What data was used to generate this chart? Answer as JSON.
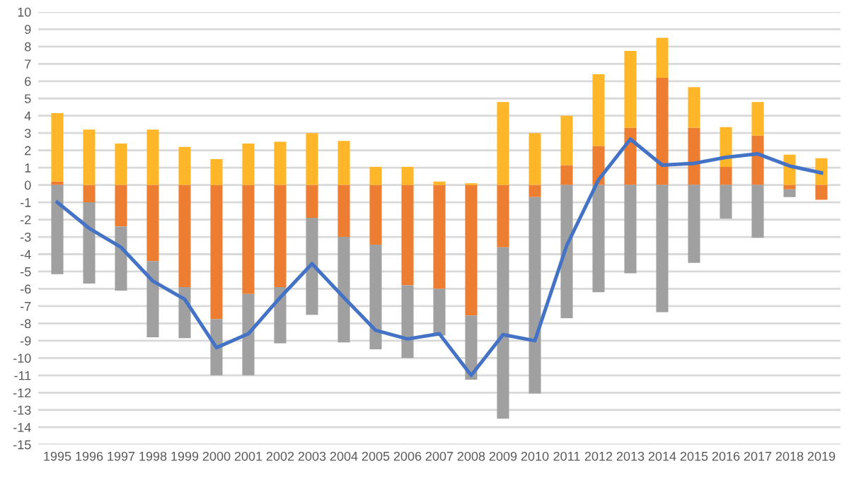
{
  "chart_data": {
    "type": "bar",
    "stacked": true,
    "categories": [
      "1995",
      "1996",
      "1997",
      "1998",
      "1999",
      "2000",
      "2001",
      "2002",
      "2003",
      "2004",
      "2005",
      "2006",
      "2007",
      "2008",
      "2009",
      "2010",
      "2011",
      "2012",
      "2013",
      "2014",
      "2015",
      "2016",
      "2017",
      "2018",
      "2019"
    ],
    "series": [
      {
        "color": "#ed7d31",
        "values": [
          0.2,
          -1.0,
          -2.4,
          -4.4,
          -5.9,
          -7.75,
          -6.3,
          -5.9,
          -1.9,
          -3.0,
          -3.45,
          -5.8,
          -6.0,
          -7.55,
          -3.6,
          -0.7,
          1.15,
          2.25,
          3.3,
          6.2,
          3.3,
          1.05,
          2.85,
          -0.25,
          -0.85
        ]
      },
      {
        "color": "#a0a0a0",
        "values": [
          -5.15,
          -4.7,
          -3.7,
          -4.4,
          -2.95,
          -3.25,
          -4.7,
          -3.25,
          -5.6,
          -6.1,
          -6.05,
          -4.2,
          -2.7,
          -3.7,
          -9.9,
          -11.35,
          -7.7,
          -6.2,
          -5.1,
          -7.35,
          -4.5,
          -1.95,
          -3.05,
          -0.45,
          0
        ]
      },
      {
        "color": "#ffb628",
        "values": [
          3.95,
          3.2,
          2.4,
          3.2,
          2.2,
          1.5,
          2.4,
          2.5,
          3.0,
          2.55,
          1.05,
          1.05,
          0.2,
          0.1,
          4.8,
          3.0,
          2.85,
          4.15,
          4.45,
          2.3,
          2.35,
          2.3,
          1.95,
          1.75,
          1.55
        ]
      },
      {
        "type": "line",
        "color": "#4472c4",
        "values": [
          -1.0,
          -2.5,
          -3.6,
          -5.55,
          -6.6,
          -9.4,
          -8.6,
          -6.5,
          -4.55,
          -6.5,
          -8.4,
          -8.9,
          -8.6,
          -11.0,
          -8.65,
          -9.0,
          -3.5,
          0.3,
          2.65,
          1.15,
          1.25,
          1.6,
          1.8,
          1.1,
          0.7
        ]
      }
    ],
    "ylim": [
      -15,
      10
    ],
    "yticks": [
      -15,
      -14,
      -13,
      -12,
      -11,
      -10,
      -9,
      -8,
      -7,
      -6,
      -5,
      -4,
      -3,
      -2,
      -1,
      0,
      1,
      2,
      3,
      4,
      5,
      6,
      7,
      8,
      9,
      10
    ],
    "grid": "y",
    "legend": false,
    "marker": "none",
    "line_style": "solid"
  }
}
